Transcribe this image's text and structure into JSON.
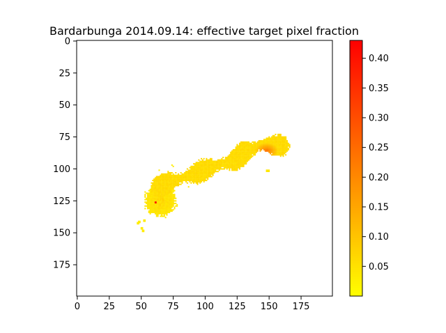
{
  "chart_data": {
    "type": "heatmap",
    "title": "Bardarbunga 2014.09.14: effective target pixel fraction",
    "x_ticks": [
      0,
      25,
      50,
      75,
      100,
      125,
      150,
      175
    ],
    "y_ticks": [
      0,
      25,
      50,
      75,
      100,
      125,
      150,
      175
    ],
    "xlim": [
      0,
      199
    ],
    "ylim": [
      199,
      0
    ],
    "grid": false,
    "colormap": {
      "name": "autumn_r",
      "low": "#ffff00",
      "high": "#ff0000"
    },
    "colorbar": {
      "range": [
        0.0,
        0.43
      ],
      "ticks": [
        "0.05",
        "0.10",
        "0.15",
        "0.20",
        "0.25",
        "0.30",
        "0.35",
        "0.40"
      ],
      "tick_values": [
        0.05,
        0.1,
        0.15,
        0.2,
        0.25,
        0.3,
        0.35,
        0.4
      ],
      "placement": "right"
    },
    "plume": {
      "background_value": null,
      "regions": [
        {
          "description": "main plume band, rows/cols in pixel index units",
          "points": [
            [
              62,
              114
            ],
            [
              75,
              110
            ],
            [
              90,
              104
            ],
            [
              105,
              99
            ],
            [
              120,
              94
            ],
            [
              132,
              87
            ],
            [
              145,
              81
            ],
            [
              160,
              82
            ]
          ],
          "half_width": 6,
          "base_value": 0.05
        },
        {
          "description": "source hot spot",
          "center": [
            148,
            86
          ],
          "radius": 10,
          "peak": 0.2
        },
        {
          "description": "lower lobe",
          "center": [
            65,
            125
          ],
          "radius": 12,
          "peak": 0.09
        },
        {
          "description": "small isolated high pixel",
          "center": [
            61,
            126
          ],
          "radius": 1,
          "peak": 0.43
        }
      ]
    }
  }
}
